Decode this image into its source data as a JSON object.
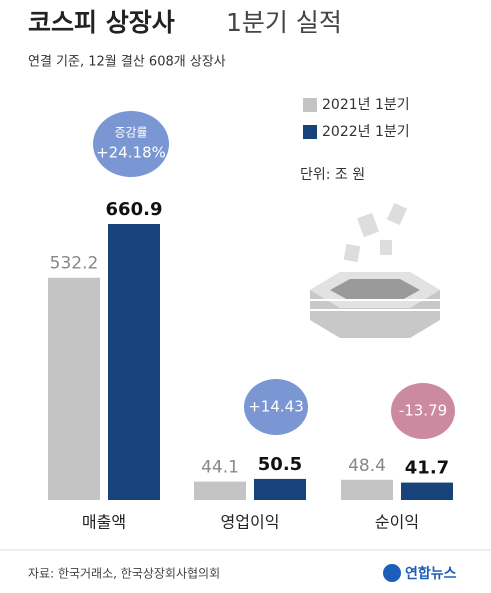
{
  "chart_data": {
    "type": "bar",
    "title": [
      "코스피 상장사",
      "1분기 실적"
    ],
    "subtitle": "연결 기준, 12월 결산 608개 상장사",
    "unit": "단위: 조 원",
    "categories": [
      "매출액",
      "영업이익",
      "순이익"
    ],
    "series": [
      {
        "name": "2021년 1분기",
        "color": "#c4c4c4",
        "values": [
          532.2,
          44.1,
          48.4
        ]
      },
      {
        "name": "2022년 1분기",
        "color": "#17427a",
        "values": [
          660.9,
          50.5,
          41.7
        ]
      }
    ],
    "annotations": [
      {
        "label": "증감률",
        "text": "+24.18%",
        "color": "#7a97d4"
      },
      {
        "text": "+14.43",
        "color": "#7a97d4"
      },
      {
        "text": "-13.79",
        "color": "#cc8aa1"
      }
    ],
    "source": "자료: 한국거래소, 한국상장회사협의회",
    "logo": "연합뉴스"
  }
}
